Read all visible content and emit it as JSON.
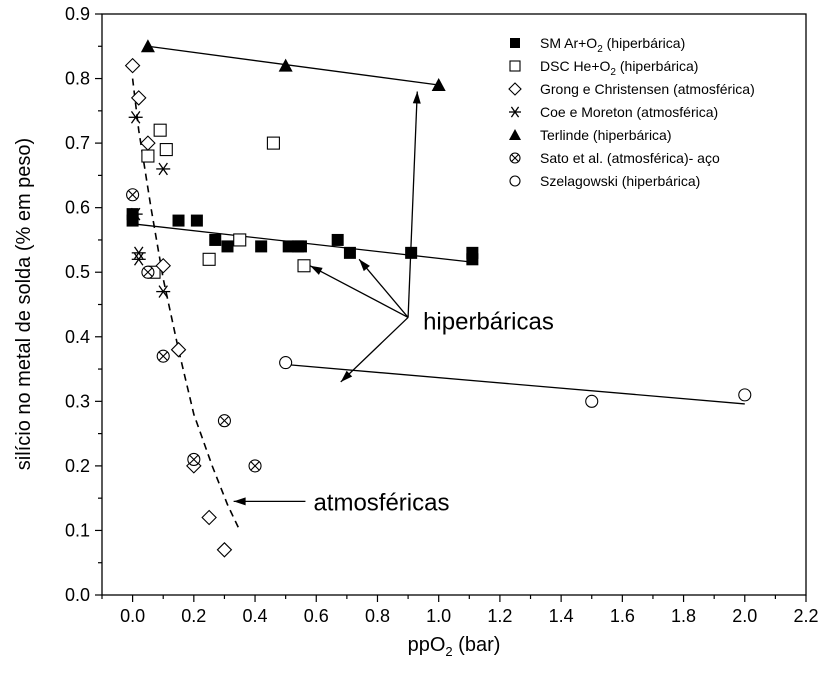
{
  "chart_data": {
    "type": "scatter",
    "xlabel_main": "ppO",
    "xlabel_sub": "2",
    "xlabel_tail": " (bar)",
    "ylabel": "silício no metal de solda (% em peso)",
    "xlim": [
      -0.1,
      2.2
    ],
    "ylim": [
      0.0,
      0.9
    ],
    "x_ticks": [
      0.0,
      0.2,
      0.4,
      0.6,
      0.8,
      1.0,
      1.2,
      1.4,
      1.6,
      1.8,
      2.0,
      2.2
    ],
    "x_tick_labels": [
      "0.0",
      "0.2",
      "0.4",
      "0.6",
      "0.8",
      "1.0",
      "1.2",
      "1.4",
      "1.6",
      "1.8",
      "2.0",
      "2.2"
    ],
    "y_ticks": [
      0.0,
      0.1,
      0.2,
      0.3,
      0.4,
      0.5,
      0.6,
      0.7,
      0.8,
      0.9
    ],
    "y_tick_labels": [
      "0.0",
      "0.1",
      "0.2",
      "0.3",
      "0.4",
      "0.5",
      "0.6",
      "0.7",
      "0.8",
      "0.9"
    ],
    "grid": false,
    "legend_position": "top-right",
    "series": [
      {
        "name": "SM Ar+O2 (hiperbárica)",
        "legend_main": "SM  Ar+O",
        "legend_sub": "2",
        "legend_tail": " (hiperbárica)",
        "marker": "filled-square",
        "points": [
          [
            0.0,
            0.58
          ],
          [
            0.0,
            0.59
          ],
          [
            0.15,
            0.58
          ],
          [
            0.21,
            0.58
          ],
          [
            0.27,
            0.55
          ],
          [
            0.31,
            0.54
          ],
          [
            0.42,
            0.54
          ],
          [
            0.51,
            0.54
          ],
          [
            0.54,
            0.54
          ],
          [
            0.55,
            0.54
          ],
          [
            0.67,
            0.55
          ],
          [
            0.71,
            0.53
          ],
          [
            0.91,
            0.53
          ],
          [
            1.11,
            0.53
          ],
          [
            1.11,
            0.52
          ]
        ]
      },
      {
        "name": "DSC He+O2 (hiperbárica)",
        "legend_main": "DSC He+O",
        "legend_sub": "2",
        "legend_tail": " (hiperbárica)",
        "marker": "open-square",
        "points": [
          [
            0.05,
            0.68
          ],
          [
            0.07,
            0.5
          ],
          [
            0.09,
            0.72
          ],
          [
            0.11,
            0.69
          ],
          [
            0.25,
            0.52
          ],
          [
            0.35,
            0.55
          ],
          [
            0.46,
            0.7
          ],
          [
            0.56,
            0.51
          ]
        ]
      },
      {
        "name": "Grong e Christensen (atmosférica)",
        "marker": "open-diamond",
        "points": [
          [
            0.0,
            0.82
          ],
          [
            0.02,
            0.77
          ],
          [
            0.05,
            0.7
          ],
          [
            0.1,
            0.51
          ],
          [
            0.15,
            0.38
          ],
          [
            0.2,
            0.2
          ],
          [
            0.25,
            0.12
          ],
          [
            0.3,
            0.07
          ]
        ]
      },
      {
        "name": "Coe e Moreton (atmosférica)",
        "marker": "asterisk",
        "points": [
          [
            0.01,
            0.74
          ],
          [
            0.01,
            0.59
          ],
          [
            0.02,
            0.53
          ],
          [
            0.02,
            0.52
          ],
          [
            0.1,
            0.66
          ],
          [
            0.1,
            0.47
          ]
        ]
      },
      {
        "name": "Terlinde (hiperbárica)",
        "marker": "filled-triangle",
        "points": [
          [
            0.05,
            0.85
          ],
          [
            0.5,
            0.82
          ],
          [
            1.0,
            0.79
          ]
        ]
      },
      {
        "name": "Sato et al. (atmosférica)- aço",
        "marker": "crossed-circle",
        "points": [
          [
            0.0,
            0.62
          ],
          [
            0.05,
            0.5
          ],
          [
            0.1,
            0.37
          ],
          [
            0.2,
            0.21
          ],
          [
            0.3,
            0.27
          ],
          [
            0.4,
            0.2
          ]
        ]
      },
      {
        "name": "Szelagowski (hiperbárica)",
        "marker": "open-circle",
        "points": [
          [
            0.5,
            0.36
          ],
          [
            1.5,
            0.3
          ],
          [
            2.0,
            0.31
          ]
        ]
      }
    ],
    "fit_lines": [
      {
        "style": "solid",
        "from": [
          0.05,
          0.85
        ],
        "to": [
          1.0,
          0.79
        ]
      },
      {
        "style": "solid",
        "from": [
          0.0,
          0.575
        ],
        "to": [
          1.12,
          0.515
        ]
      },
      {
        "style": "solid",
        "from": [
          0.5,
          0.357
        ],
        "to": [
          2.0,
          0.296
        ]
      }
    ],
    "dashed_curve": [
      [
        0.0,
        0.8
      ],
      [
        0.02,
        0.72
      ],
      [
        0.06,
        0.6
      ],
      [
        0.1,
        0.49
      ],
      [
        0.15,
        0.38
      ],
      [
        0.2,
        0.28
      ],
      [
        0.26,
        0.2
      ],
      [
        0.31,
        0.14
      ],
      [
        0.35,
        0.1
      ]
    ],
    "annotations": [
      {
        "text": "hiperbáricas",
        "anchor": [
          0.9,
          0.43
        ],
        "arrows_to": [
          [
            0.93,
            0.78
          ],
          [
            0.74,
            0.52
          ],
          [
            0.58,
            0.51
          ],
          [
            0.68,
            0.33
          ]
        ]
      },
      {
        "text": "atmosféricas",
        "anchor": [
          0.63,
          0.145
        ],
        "arrows_to": [
          [
            0.33,
            0.145
          ]
        ]
      }
    ]
  }
}
